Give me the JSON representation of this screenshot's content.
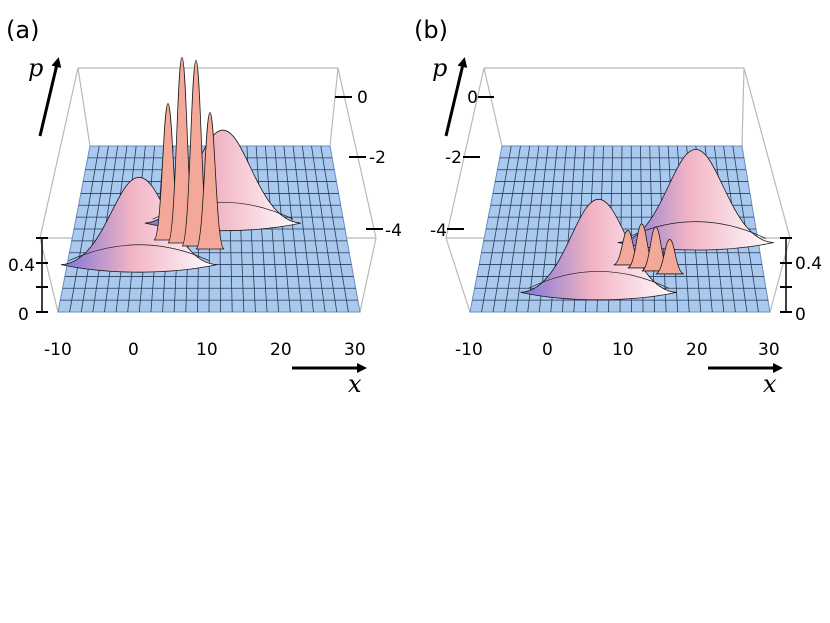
{
  "chart_data": [
    {
      "type": "surface",
      "panel_label": "(a)",
      "xlabel": "x",
      "ylabel": "p",
      "x_ticks": [
        "-10",
        "0",
        "10",
        "20",
        "30"
      ],
      "p_ticks": [
        "0",
        "-2",
        "-4"
      ],
      "z_ticks": [
        "0.4",
        "0"
      ],
      "xlim": [
        -10,
        30
      ],
      "plim": [
        -5,
        1
      ],
      "zlim": [
        0,
        0.6
      ],
      "grid": true,
      "peaks": [
        {
          "x": 0,
          "p": -3,
          "height": 0.28
        },
        {
          "x": 12,
          "p": -1.5,
          "height": 0.3
        },
        {
          "x": 7,
          "p": -2.2,
          "height": 0.62,
          "oscillating": true
        }
      ]
    },
    {
      "type": "surface",
      "panel_label": "(b)",
      "xlabel": "x",
      "ylabel": "p",
      "x_ticks": [
        "-10",
        "0",
        "10",
        "20",
        "30"
      ],
      "p_ticks": [
        "0",
        "-2",
        "-4"
      ],
      "z_ticks": [
        "0.4",
        "0"
      ],
      "xlim": [
        -10,
        30
      ],
      "plim": [
        -5,
        1
      ],
      "zlim": [
        0,
        0.6
      ],
      "grid": true,
      "peaks": [
        {
          "x": 7,
          "p": -4,
          "height": 0.3
        },
        {
          "x": 21,
          "p": -2.2,
          "height": 0.3
        },
        {
          "x": 14,
          "p": -3.1,
          "height": 0.12,
          "oscillating": true
        }
      ]
    }
  ]
}
